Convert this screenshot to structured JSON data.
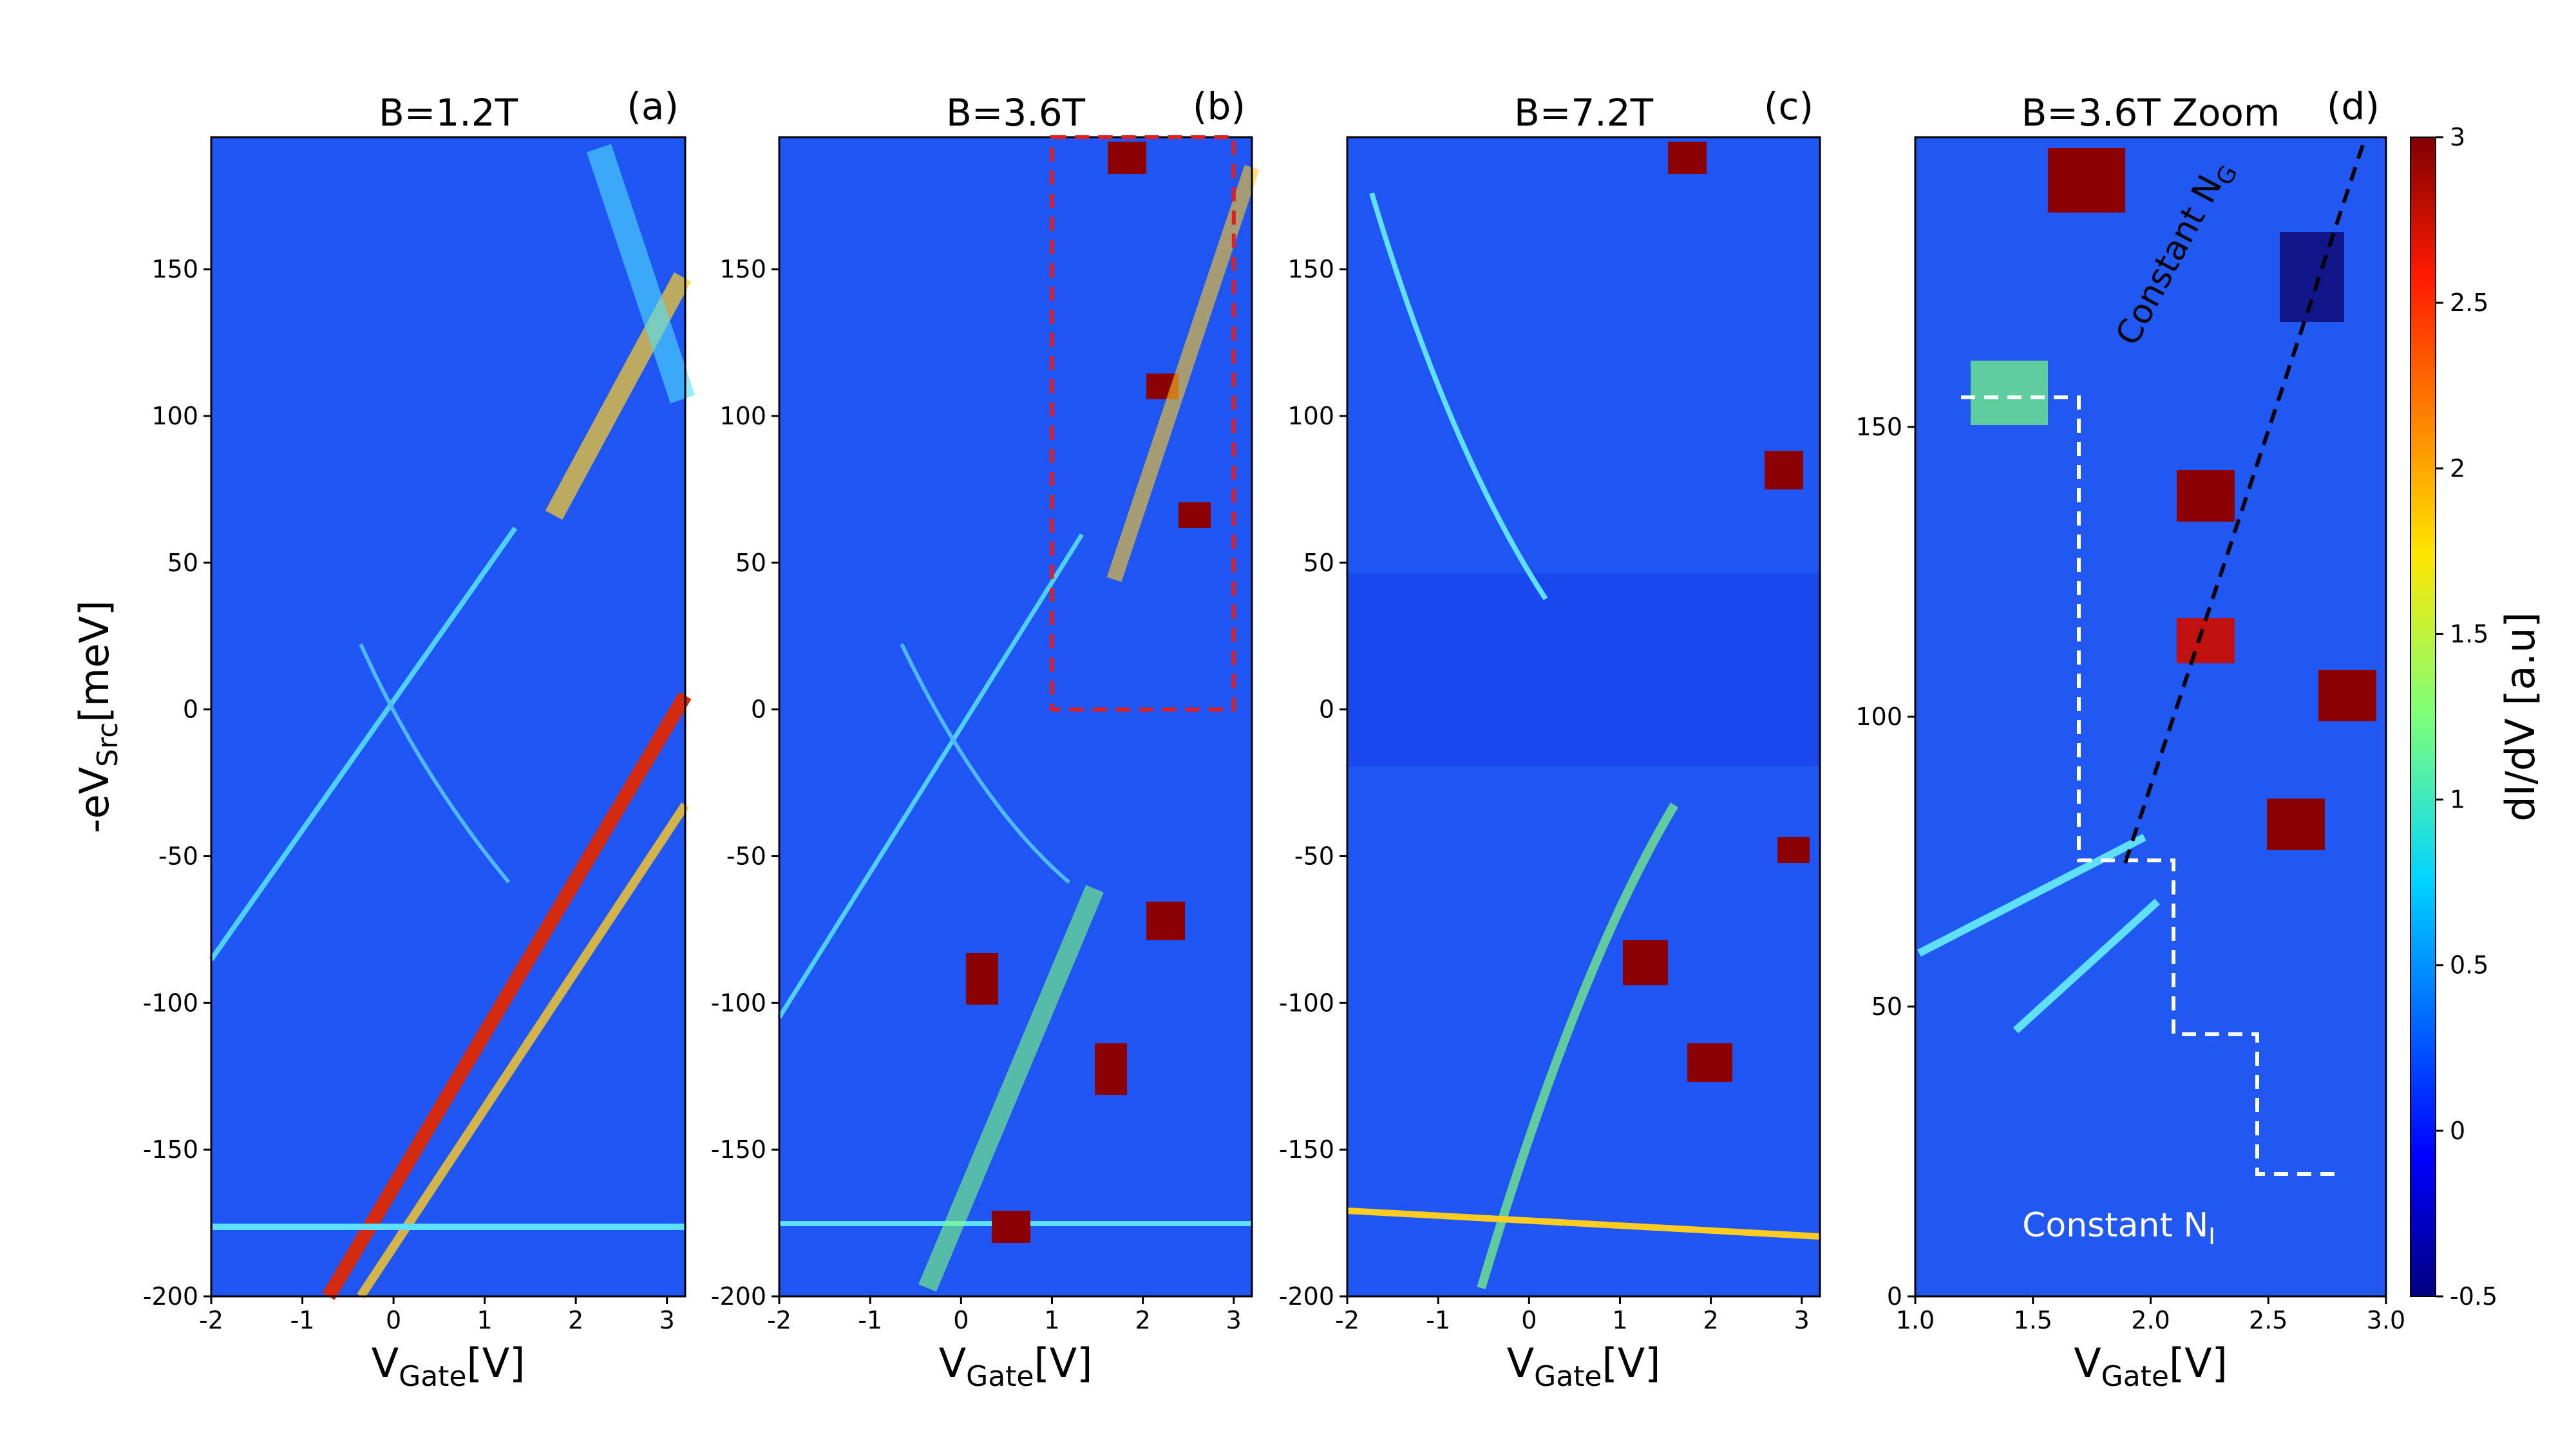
{
  "chart_data": [
    {
      "type": "heatmap",
      "title": "B=1.2T",
      "panel_label": "(a)",
      "xlabel": [
        "V",
        "Gate",
        "[V]"
      ],
      "ylabel": [
        "-eV",
        "Src",
        "[meV]"
      ],
      "xlim": [
        -2,
        3.2
      ],
      "ylim": [
        -200,
        195
      ],
      "xticks": [
        -2,
        -1,
        0,
        1,
        2,
        3
      ],
      "yticks": [
        -200,
        -150,
        -100,
        -50,
        0,
        50,
        100,
        150
      ]
    },
    {
      "type": "heatmap",
      "title": "B=3.6T",
      "panel_label": "(b)",
      "xlabel": [
        "V",
        "Gate",
        "[V]"
      ],
      "xlim": [
        -2,
        3.2
      ],
      "ylim": [
        -200,
        195
      ],
      "xticks": [
        -2,
        -1,
        0,
        1,
        2,
        3
      ],
      "yticks": [
        -200,
        -150,
        -100,
        -50,
        0,
        50,
        100,
        150
      ]
    },
    {
      "type": "heatmap",
      "title": "B=7.2T",
      "panel_label": "(c)",
      "xlabel": [
        "V",
        "Gate",
        "[V]"
      ],
      "xlim": [
        -2,
        3.2
      ],
      "ylim": [
        -200,
        195
      ],
      "xticks": [
        -2,
        -1,
        0,
        1,
        2,
        3
      ],
      "yticks": [
        -200,
        -150,
        -100,
        -50,
        0,
        50,
        100,
        150
      ]
    },
    {
      "type": "heatmap",
      "title": "B=3.6T Zoom",
      "panel_label": "(d)",
      "xlabel": [
        "V",
        "Gate",
        "[V]"
      ],
      "xlim": [
        1,
        3
      ],
      "ylim": [
        0,
        200
      ],
      "xticks": [
        {
          "value": 1,
          "label": "1.0"
        },
        1.5,
        {
          "value": 2,
          "label": "2.0"
        },
        2.5,
        {
          "value": 3,
          "label": "3.0"
        }
      ],
      "yticks": [
        0,
        50,
        100,
        150
      ],
      "annotations": [
        {
          "text": "Constant N",
          "sub": "G"
        },
        {
          "text": "Constant N",
          "sub": "I"
        }
      ]
    },
    {
      "type": "colorbar",
      "label": "dI/dV [a.u]",
      "lim": [
        -0.5,
        3
      ],
      "ticks": [
        -0.5,
        0,
        0.5,
        1,
        1.5,
        2,
        2.5,
        3
      ]
    }
  ]
}
